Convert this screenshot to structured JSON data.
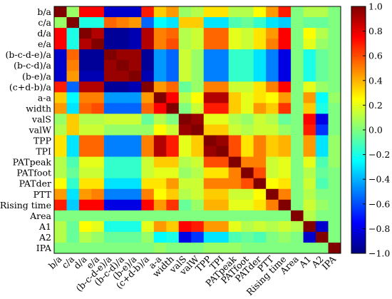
{
  "chart_data": {
    "type": "heatmap",
    "rows": [
      "b/a",
      "c/a",
      "d/a",
      "e/a",
      "(b-c-d-e)/a",
      "(b-c-d)/a",
      "(b-e)/a",
      "(c+d-b)/a",
      "a-a",
      "width",
      "valS",
      "valW",
      "TPP",
      "TPI",
      "PATpeak",
      "PATfoot",
      "PATder",
      "PTT",
      "Rising time",
      "Area",
      "A1",
      "A2",
      "IPA"
    ],
    "columns": [
      "b/a",
      "c/a",
      "d/a",
      "e/a",
      "(b-c-d-e)/a",
      "(b-c-d)/a",
      "(b-e)/a",
      "(c+d-b)/a",
      "a-a",
      "width",
      "valS",
      "valW",
      "TPP",
      "TPI",
      "PATpeak",
      "PATfoot",
      "PATder",
      "PTT",
      "Rising time",
      "Area",
      "A1",
      "A2",
      "IPA"
    ],
    "matrix": [
      [
        1.0,
        0.05,
        0.75,
        0.75,
        -0.85,
        -0.85,
        -0.85,
        0.7,
        0.35,
        0.45,
        0.05,
        0.1,
        0.3,
        0.3,
        0.1,
        0.1,
        0.25,
        0.45,
        0.7,
        0.0,
        0.1,
        0.1,
        0.0
      ],
      [
        0.05,
        1.0,
        -0.2,
        -0.2,
        0.55,
        0.5,
        0.45,
        -0.55,
        -0.25,
        -0.3,
        0.35,
        0.35,
        -0.3,
        -0.3,
        -0.1,
        -0.05,
        -0.15,
        -0.3,
        -0.35,
        0.0,
        -0.05,
        -0.05,
        0.0
      ],
      [
        0.75,
        -0.2,
        1.0,
        0.9,
        -0.95,
        -0.95,
        -0.9,
        0.9,
        0.5,
        0.55,
        0.1,
        0.15,
        0.55,
        0.55,
        0.2,
        0.15,
        0.3,
        0.45,
        0.75,
        0.0,
        0.25,
        0.1,
        0.0
      ],
      [
        0.75,
        -0.2,
        0.9,
        1.0,
        -0.95,
        -0.95,
        -0.9,
        0.9,
        0.5,
        0.6,
        0.1,
        0.15,
        0.55,
        0.55,
        0.2,
        0.15,
        0.3,
        0.5,
        0.75,
        0.0,
        0.2,
        0.05,
        0.0
      ],
      [
        -0.85,
        0.55,
        -0.95,
        -0.95,
        1.0,
        0.95,
        0.95,
        -0.95,
        -0.45,
        -0.55,
        0.15,
        0.05,
        -0.5,
        -0.5,
        -0.15,
        -0.15,
        -0.3,
        -0.5,
        -0.8,
        0.0,
        -0.2,
        -0.05,
        0.0
      ],
      [
        -0.85,
        0.5,
        -0.95,
        -0.95,
        0.95,
        1.0,
        0.95,
        -0.95,
        -0.45,
        -0.55,
        0.15,
        0.05,
        -0.5,
        -0.5,
        -0.15,
        -0.15,
        -0.3,
        -0.5,
        -0.8,
        0.0,
        -0.2,
        -0.05,
        0.0
      ],
      [
        -0.85,
        0.45,
        -0.9,
        -0.9,
        0.95,
        0.95,
        1.0,
        -0.9,
        -0.45,
        -0.55,
        0.15,
        0.05,
        -0.5,
        -0.5,
        -0.15,
        -0.15,
        -0.3,
        -0.5,
        -0.8,
        0.0,
        -0.2,
        -0.05,
        0.0
      ],
      [
        0.7,
        -0.55,
        0.9,
        0.9,
        -0.95,
        -0.95,
        -0.9,
        1.0,
        0.45,
        0.55,
        -0.05,
        0.05,
        0.5,
        0.5,
        0.15,
        0.15,
        0.3,
        0.5,
        0.75,
        0.0,
        0.2,
        0.05,
        0.0
      ],
      [
        0.35,
        -0.25,
        0.5,
        0.5,
        -0.45,
        -0.45,
        -0.45,
        0.45,
        1.0,
        0.75,
        0.1,
        0.25,
        0.9,
        0.9,
        0.35,
        0.2,
        0.3,
        0.25,
        0.45,
        0.0,
        0.45,
        -0.25,
        0.05
      ],
      [
        0.45,
        -0.3,
        0.55,
        0.6,
        -0.55,
        -0.55,
        -0.55,
        0.55,
        0.75,
        1.0,
        0.0,
        0.15,
        0.7,
        0.7,
        0.35,
        0.2,
        0.45,
        0.35,
        0.65,
        0.0,
        0.35,
        -0.2,
        0.0
      ],
      [
        0.05,
        0.35,
        0.1,
        0.1,
        0.15,
        0.15,
        0.15,
        -0.05,
        0.1,
        0.0,
        1.0,
        0.95,
        0.2,
        0.2,
        0.1,
        0.05,
        0.15,
        0.1,
        -0.05,
        0.0,
        0.75,
        -0.8,
        0.0
      ],
      [
        0.1,
        0.35,
        0.15,
        0.15,
        0.05,
        0.05,
        0.05,
        0.05,
        0.25,
        0.15,
        0.95,
        1.0,
        0.35,
        0.35,
        0.15,
        0.1,
        0.15,
        0.15,
        0.05,
        0.0,
        0.7,
        -0.65,
        0.0
      ],
      [
        0.3,
        -0.3,
        0.55,
        0.55,
        -0.5,
        -0.5,
        -0.5,
        0.5,
        0.9,
        0.7,
        0.2,
        0.35,
        1.0,
        0.95,
        0.6,
        0.3,
        0.5,
        0.35,
        0.4,
        0.0,
        0.45,
        -0.3,
        0.05
      ],
      [
        0.3,
        -0.3,
        0.55,
        0.55,
        -0.5,
        -0.5,
        -0.5,
        0.5,
        0.9,
        0.7,
        0.2,
        0.35,
        0.95,
        1.0,
        0.6,
        0.3,
        0.5,
        0.35,
        0.4,
        0.0,
        0.45,
        -0.3,
        0.05
      ],
      [
        0.1,
        -0.1,
        0.2,
        0.2,
        -0.15,
        -0.15,
        -0.15,
        0.15,
        0.35,
        0.35,
        0.1,
        0.15,
        0.6,
        0.6,
        1.0,
        0.5,
        0.5,
        0.15,
        0.2,
        0.0,
        0.2,
        -0.1,
        0.05
      ],
      [
        0.1,
        -0.05,
        0.15,
        0.15,
        -0.15,
        -0.15,
        -0.15,
        0.15,
        0.2,
        0.2,
        0.05,
        0.1,
        0.3,
        0.3,
        0.5,
        1.0,
        0.6,
        0.15,
        0.2,
        0.0,
        0.1,
        -0.05,
        0.0
      ],
      [
        0.25,
        -0.15,
        0.3,
        0.3,
        -0.3,
        -0.3,
        -0.3,
        0.3,
        0.3,
        0.45,
        0.15,
        0.15,
        0.5,
        0.5,
        0.5,
        0.6,
        1.0,
        0.25,
        0.3,
        0.0,
        0.15,
        -0.1,
        0.0
      ],
      [
        0.45,
        -0.3,
        0.45,
        0.5,
        -0.5,
        -0.5,
        -0.5,
        0.5,
        0.25,
        0.35,
        0.1,
        0.15,
        0.35,
        0.35,
        0.15,
        0.15,
        0.25,
        1.0,
        0.5,
        0.0,
        0.1,
        0.0,
        0.0
      ],
      [
        0.7,
        -0.35,
        0.75,
        0.75,
        -0.8,
        -0.8,
        -0.8,
        0.75,
        0.45,
        0.65,
        -0.05,
        0.05,
        0.4,
        0.4,
        0.2,
        0.2,
        0.3,
        0.5,
        1.0,
        0.0,
        0.15,
        0.05,
        0.0
      ],
      [
        0.0,
        0.0,
        0.0,
        0.0,
        0.0,
        0.0,
        0.0,
        0.0,
        0.0,
        0.0,
        0.0,
        0.0,
        0.0,
        0.0,
        0.0,
        0.0,
        0.0,
        0.0,
        0.0,
        1.0,
        0.1,
        0.0,
        0.0
      ],
      [
        0.1,
        -0.05,
        0.25,
        0.2,
        -0.2,
        -0.2,
        -0.2,
        0.2,
        0.45,
        0.35,
        0.75,
        0.7,
        0.45,
        0.45,
        0.2,
        0.1,
        0.15,
        0.1,
        0.15,
        0.1,
        1.0,
        -0.85,
        0.0
      ],
      [
        0.1,
        -0.05,
        0.1,
        0.05,
        -0.05,
        -0.05,
        -0.05,
        0.05,
        -0.25,
        -0.2,
        -0.8,
        -0.65,
        -0.3,
        -0.3,
        -0.1,
        -0.05,
        -0.1,
        0.0,
        0.05,
        0.0,
        -0.85,
        1.0,
        0.0
      ],
      [
        0.0,
        0.0,
        0.0,
        0.0,
        0.0,
        0.0,
        0.0,
        0.0,
        0.05,
        0.0,
        0.0,
        0.0,
        0.05,
        0.05,
        0.05,
        0.0,
        0.0,
        0.0,
        0.0,
        0.0,
        0.0,
        0.0,
        1.0
      ]
    ],
    "colorbar": {
      "min": -1.0,
      "max": 1.0,
      "ticks": [
        "1.0",
        "0.8",
        "0.6",
        "0.4",
        "0.2",
        "0.0",
        "−0.2",
        "−0.4",
        "−0.6",
        "−0.8",
        "−1.0"
      ],
      "tick_values": [
        1.0,
        0.8,
        0.6,
        0.4,
        0.2,
        0.0,
        -0.2,
        -0.4,
        -0.6,
        -0.8,
        -1.0
      ],
      "colormap": "jet"
    },
    "title": "",
    "xlabel": "",
    "ylabel": ""
  }
}
